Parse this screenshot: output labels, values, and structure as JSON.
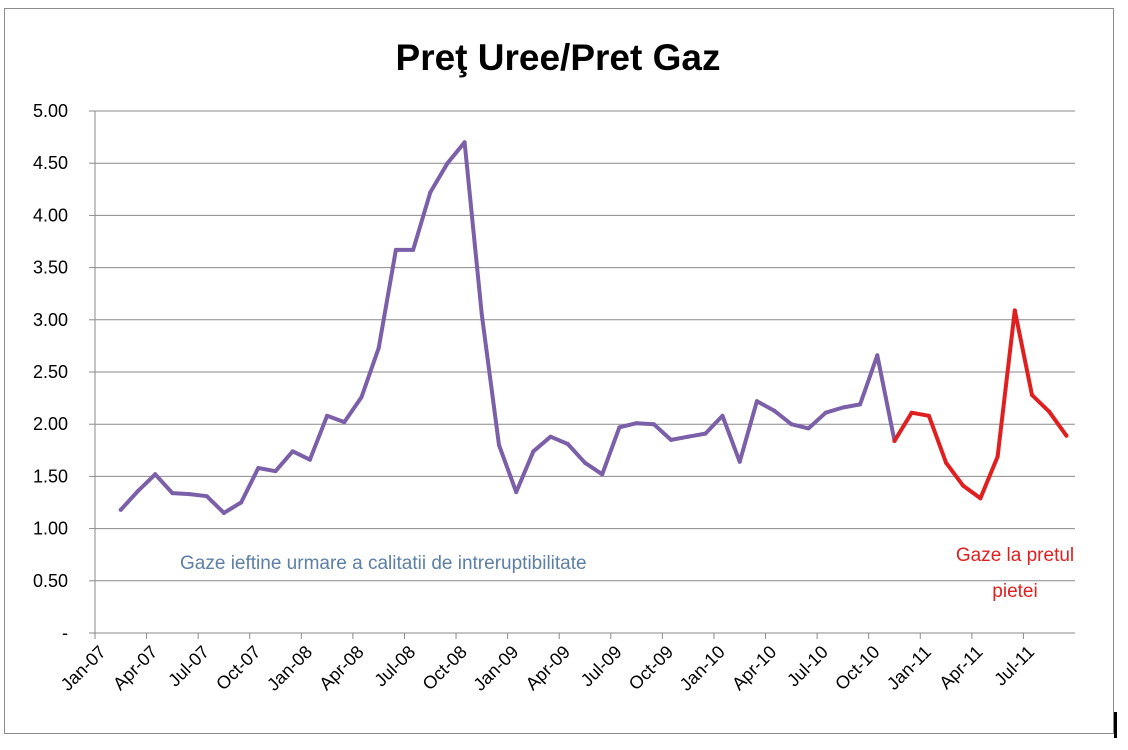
{
  "chart_data": {
    "type": "line",
    "title": "Preţ Uree/Pret Gaz",
    "xlabel": "",
    "ylabel": "",
    "ylim": [
      0,
      5
    ],
    "y_ticks": [
      "-",
      "0.50",
      "1.00",
      "1.50",
      "2.00",
      "2.50",
      "3.00",
      "3.50",
      "4.00",
      "4.50",
      "5.00"
    ],
    "x_ticks": [
      "Jan-07",
      "Apr-07",
      "Jul-07",
      "Oct-07",
      "Jan-08",
      "Apr-08",
      "Jul-08",
      "Oct-08",
      "Jan-09",
      "Apr-09",
      "Jul-09",
      "Oct-09",
      "Jan-10",
      "Apr-10",
      "Jul-10",
      "Oct-10",
      "Jan-11",
      "Apr-11",
      "Jul-11"
    ],
    "grid": true,
    "series": [
      {
        "color": "#7b5fa8",
        "start": "Feb-07",
        "values": [
          1.18,
          1.36,
          1.52,
          1.34,
          1.33,
          1.31,
          1.15,
          1.25,
          1.58,
          1.55,
          1.74,
          1.66,
          2.08,
          2.02,
          2.26,
          2.73,
          3.67,
          3.67,
          4.22,
          4.5,
          4.7,
          3.05,
          1.8,
          1.35,
          1.74,
          1.88,
          1.81,
          1.63,
          1.52,
          1.97,
          2.01,
          2.0,
          1.85,
          1.88,
          1.91,
          2.08,
          1.64,
          2.22,
          2.13,
          2.0,
          1.96,
          2.11,
          2.16,
          2.19,
          2.66,
          1.84
        ]
      },
      {
        "color": "#e02020",
        "start": "Nov-10",
        "values": [
          1.84,
          2.11,
          2.08,
          1.63,
          1.41,
          1.29,
          1.69,
          3.09,
          2.28,
          2.12,
          1.89
        ]
      }
    ],
    "annotations": [
      {
        "text": "Gaze ieftine urmare  a calitatii de intreruptibilitate",
        "color": "#5b7fa6"
      },
      {
        "text_line1": "Gaze la pretul",
        "text_line2": "pietei",
        "color": "#e02020"
      }
    ]
  }
}
